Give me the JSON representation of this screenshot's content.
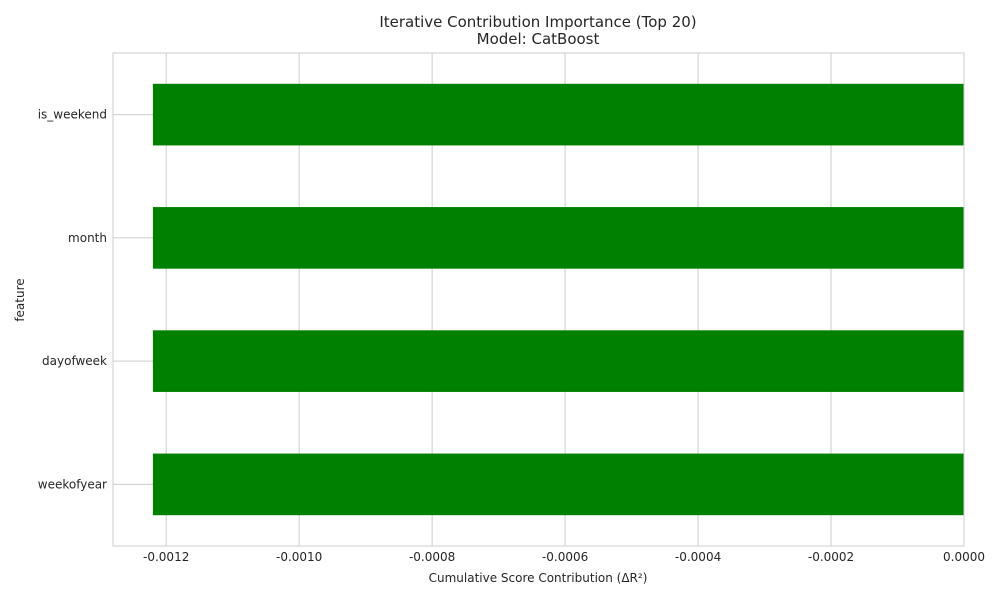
{
  "chart_data": {
    "type": "bar",
    "orientation": "horizontal",
    "title": "Iterative Contribution Importance (Top 20)",
    "subtitle": "Model: CatBoost",
    "xlabel": "Cumulative Score Contribution (ΔR²)",
    "ylabel": "feature",
    "categories": [
      "weekofyear",
      "dayofweek",
      "month",
      "is_weekend"
    ],
    "values": [
      -0.00122,
      -0.00122,
      -0.00122,
      -0.00122
    ],
    "xlim": [
      -0.00128,
      0.0
    ],
    "xticks": [
      -0.0012,
      -0.001,
      -0.0008,
      -0.0006,
      -0.0004,
      -0.0002,
      0.0
    ],
    "xtick_labels": [
      "-0.0012",
      "-0.0010",
      "-0.0008",
      "-0.0006",
      "-0.0004",
      "-0.0002",
      "0.0000"
    ],
    "bar_color": "#008000",
    "grid": true
  }
}
